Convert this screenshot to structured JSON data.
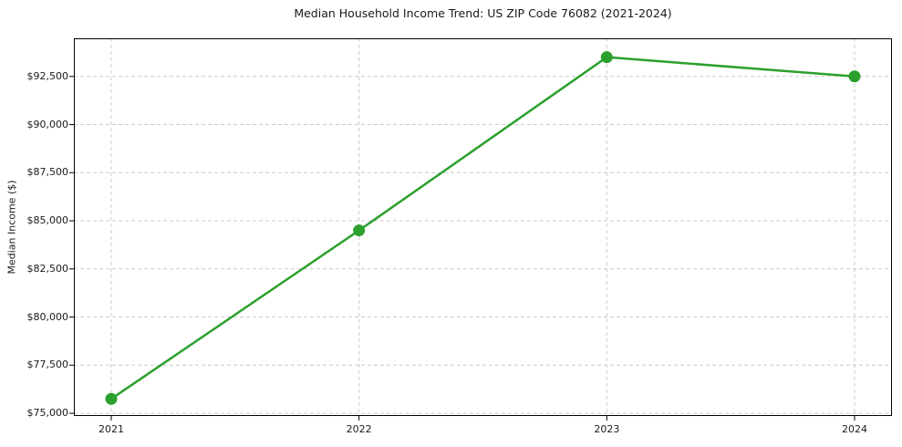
{
  "chart_data": {
    "type": "line",
    "title": "Median Household Income Trend: US ZIP Code 76082 (2021-2024)",
    "xlabel": "",
    "ylabel": "Median Income ($)",
    "x": [
      2021,
      2022,
      2023,
      2024
    ],
    "x_tick_labels": [
      "2021",
      "2022",
      "2023",
      "2024"
    ],
    "series": [
      {
        "name": "Median Household Income",
        "values": [
          75750,
          84500,
          93500,
          92500
        ]
      }
    ],
    "y_ticks": [
      75000,
      77500,
      80000,
      82500,
      85000,
      87500,
      90000,
      92500
    ],
    "y_tick_labels": [
      "$75,000",
      "$77,500",
      "$80,000",
      "$82,500",
      "$85,000",
      "$87,500",
      "$90,000",
      "$92,500"
    ],
    "ylim": [
      74860,
      94480
    ],
    "grid": true,
    "grid_style": "dashed",
    "legend_position": "none",
    "colors": {
      "line": "#2ca02c",
      "marker": "#2ca02c",
      "grid": "#cccccc",
      "spine": "#000000",
      "text": "#1a1a1a",
      "background": "#ffffff"
    }
  }
}
